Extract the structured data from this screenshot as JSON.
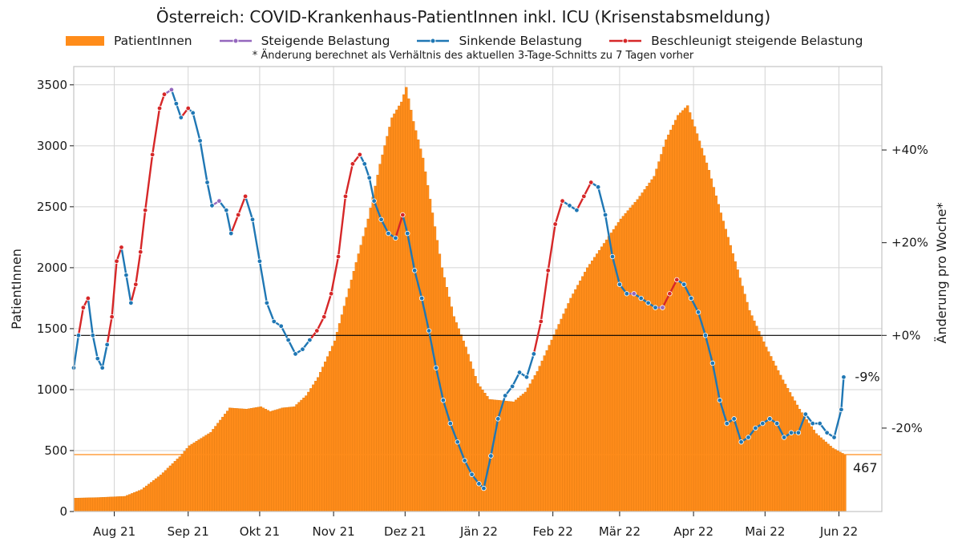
{
  "chart_data": {
    "type": "bar+line",
    "title": "Österreich: COVID-Krankenhaus-PatientInnen inkl. ICU (Krisenstabsmeldung)",
    "footnote": "* Änderung berechnet als Verhältnis des aktuellen 3-Tage-Schnitts zu 7 Tagen vorher",
    "ylabel_left": "PatientInnen",
    "ylabel_right": "Änderung pro Woche*",
    "xlim": [
      "2021-07-15",
      "2022-06-19"
    ],
    "ylim_left": [
      0,
      3650
    ],
    "ylim_right": [
      -38,
      58
    ],
    "yticks_left": [
      0,
      500,
      1000,
      1500,
      2000,
      2500,
      3000,
      3500
    ],
    "yticks_right": [
      {
        "value": -20,
        "label": "-20%"
      },
      {
        "value": 0,
        "label": "+0%"
      },
      {
        "value": 20,
        "label": "+20%"
      },
      {
        "value": 40,
        "label": "+40%"
      }
    ],
    "xticks": [
      {
        "date": "2021-08-01",
        "label": "Aug 21"
      },
      {
        "date": "2021-09-01",
        "label": "Sep 21"
      },
      {
        "date": "2021-10-01",
        "label": "Okt 21"
      },
      {
        "date": "2021-11-01",
        "label": "Nov 21"
      },
      {
        "date": "2021-12-01",
        "label": "Dez 21"
      },
      {
        "date": "2022-01-01",
        "label": "Jän 22"
      },
      {
        "date": "2022-02-01",
        "label": "Feb 22"
      },
      {
        "date": "2022-03-01",
        "label": "Mär 22"
      },
      {
        "date": "2022-04-01",
        "label": "Apr 22"
      },
      {
        "date": "2022-05-01",
        "label": "Mai 22"
      },
      {
        "date": "2022-06-01",
        "label": "Jun 22"
      }
    ],
    "grid": true,
    "legend_position": "top",
    "legend": [
      {
        "label": "PatientInnen",
        "kind": "bar",
        "color": "#ff8c1a"
      },
      {
        "label": "Steigende Belastung",
        "kind": "line",
        "color": "#9467bd"
      },
      {
        "label": "Sinkende Belastung",
        "kind": "line",
        "color": "#1f77b4"
      },
      {
        "label": "Beschleunigt steigende Belastung",
        "kind": "line",
        "color": "#d62728"
      }
    ],
    "colors": {
      "bars": "#ff8c1a",
      "bar_edge": "#e07a10",
      "rising": "#9467bd",
      "falling": "#1f77b4",
      "accelerating": "#d62728",
      "grid": "#d4d4d4",
      "zero_line": "#000000"
    },
    "patients_series": [
      {
        "date": "2021-07-15",
        "value": 110
      },
      {
        "date": "2021-07-25",
        "value": 115
      },
      {
        "date": "2021-08-05",
        "value": 125
      },
      {
        "date": "2021-08-12",
        "value": 180
      },
      {
        "date": "2021-08-20",
        "value": 300
      },
      {
        "date": "2021-08-28",
        "value": 450
      },
      {
        "date": "2021-09-01",
        "value": 540
      },
      {
        "date": "2021-09-10",
        "value": 650
      },
      {
        "date": "2021-09-18",
        "value": 850
      },
      {
        "date": "2021-09-25",
        "value": 840
      },
      {
        "date": "2021-10-01",
        "value": 860
      },
      {
        "date": "2021-10-05",
        "value": 820
      },
      {
        "date": "2021-10-10",
        "value": 850
      },
      {
        "date": "2021-10-15",
        "value": 860
      },
      {
        "date": "2021-10-20",
        "value": 950
      },
      {
        "date": "2021-10-25",
        "value": 1100
      },
      {
        "date": "2021-11-01",
        "value": 1400
      },
      {
        "date": "2021-11-08",
        "value": 1900
      },
      {
        "date": "2021-11-15",
        "value": 2400
      },
      {
        "date": "2021-11-20",
        "value": 2850
      },
      {
        "date": "2021-11-25",
        "value": 3230
      },
      {
        "date": "2021-11-29",
        "value": 3360
      },
      {
        "date": "2021-12-01",
        "value": 3480
      },
      {
        "date": "2021-12-04",
        "value": 3200
      },
      {
        "date": "2021-12-08",
        "value": 2900
      },
      {
        "date": "2021-12-12",
        "value": 2450
      },
      {
        "date": "2021-12-16",
        "value": 2000
      },
      {
        "date": "2021-12-21",
        "value": 1600
      },
      {
        "date": "2021-12-26",
        "value": 1350
      },
      {
        "date": "2021-12-31",
        "value": 1050
      },
      {
        "date": "2022-01-05",
        "value": 920
      },
      {
        "date": "2022-01-10",
        "value": 910
      },
      {
        "date": "2022-01-15",
        "value": 900
      },
      {
        "date": "2022-01-20",
        "value": 980
      },
      {
        "date": "2022-01-25",
        "value": 1150
      },
      {
        "date": "2022-02-01",
        "value": 1450
      },
      {
        "date": "2022-02-08",
        "value": 1750
      },
      {
        "date": "2022-02-15",
        "value": 2000
      },
      {
        "date": "2022-02-22",
        "value": 2200
      },
      {
        "date": "2022-03-01",
        "value": 2400
      },
      {
        "date": "2022-03-08",
        "value": 2560
      },
      {
        "date": "2022-03-15",
        "value": 2750
      },
      {
        "date": "2022-03-20",
        "value": 3050
      },
      {
        "date": "2022-03-25",
        "value": 3250
      },
      {
        "date": "2022-03-29",
        "value": 3330
      },
      {
        "date": "2022-04-02",
        "value": 3100
      },
      {
        "date": "2022-04-07",
        "value": 2800
      },
      {
        "date": "2022-04-12",
        "value": 2450
      },
      {
        "date": "2022-04-18",
        "value": 2050
      },
      {
        "date": "2022-04-24",
        "value": 1650
      },
      {
        "date": "2022-05-01",
        "value": 1350
      },
      {
        "date": "2022-05-08",
        "value": 1080
      },
      {
        "date": "2022-05-15",
        "value": 840
      },
      {
        "date": "2022-05-22",
        "value": 640
      },
      {
        "date": "2022-05-29",
        "value": 520
      },
      {
        "date": "2022-06-03",
        "value": 467
      }
    ],
    "change_series": [
      {
        "date": "2021-07-15",
        "value": -7
      },
      {
        "date": "2021-07-17",
        "value": 0
      },
      {
        "date": "2021-07-19",
        "value": 6
      },
      {
        "date": "2021-07-21",
        "value": 8
      },
      {
        "date": "2021-07-23",
        "value": 0
      },
      {
        "date": "2021-07-25",
        "value": -5
      },
      {
        "date": "2021-07-27",
        "value": -7
      },
      {
        "date": "2021-07-29",
        "value": -2
      },
      {
        "date": "2021-07-31",
        "value": 4
      },
      {
        "date": "2021-08-02",
        "value": 16
      },
      {
        "date": "2021-08-04",
        "value": 19
      },
      {
        "date": "2021-08-06",
        "value": 13
      },
      {
        "date": "2021-08-08",
        "value": 7
      },
      {
        "date": "2021-08-10",
        "value": 11
      },
      {
        "date": "2021-08-12",
        "value": 18
      },
      {
        "date": "2021-08-14",
        "value": 27
      },
      {
        "date": "2021-08-17",
        "value": 39
      },
      {
        "date": "2021-08-20",
        "value": 49
      },
      {
        "date": "2021-08-22",
        "value": 52
      },
      {
        "date": "2021-08-25",
        "value": 53
      },
      {
        "date": "2021-08-27",
        "value": 50
      },
      {
        "date": "2021-08-29",
        "value": 47
      },
      {
        "date": "2021-09-01",
        "value": 49
      },
      {
        "date": "2021-09-03",
        "value": 48
      },
      {
        "date": "2021-09-06",
        "value": 42
      },
      {
        "date": "2021-09-09",
        "value": 33
      },
      {
        "date": "2021-09-11",
        "value": 28
      },
      {
        "date": "2021-09-14",
        "value": 29
      },
      {
        "date": "2021-09-17",
        "value": 27
      },
      {
        "date": "2021-09-19",
        "value": 22
      },
      {
        "date": "2021-09-22",
        "value": 26
      },
      {
        "date": "2021-09-25",
        "value": 30
      },
      {
        "date": "2021-09-28",
        "value": 25
      },
      {
        "date": "2021-10-01",
        "value": 16
      },
      {
        "date": "2021-10-04",
        "value": 7
      },
      {
        "date": "2021-10-07",
        "value": 3
      },
      {
        "date": "2021-10-10",
        "value": 2
      },
      {
        "date": "2021-10-13",
        "value": -1
      },
      {
        "date": "2021-10-16",
        "value": -4
      },
      {
        "date": "2021-10-19",
        "value": -3
      },
      {
        "date": "2021-10-22",
        "value": -1
      },
      {
        "date": "2021-10-25",
        "value": 1
      },
      {
        "date": "2021-10-28",
        "value": 4
      },
      {
        "date": "2021-10-31",
        "value": 9
      },
      {
        "date": "2021-11-03",
        "value": 17
      },
      {
        "date": "2021-11-06",
        "value": 30
      },
      {
        "date": "2021-11-09",
        "value": 37
      },
      {
        "date": "2021-11-12",
        "value": 39
      },
      {
        "date": "2021-11-14",
        "value": 37
      },
      {
        "date": "2021-11-16",
        "value": 34
      },
      {
        "date": "2021-11-18",
        "value": 29
      },
      {
        "date": "2021-11-21",
        "value": 25
      },
      {
        "date": "2021-11-24",
        "value": 22
      },
      {
        "date": "2021-11-27",
        "value": 21
      },
      {
        "date": "2021-11-30",
        "value": 26
      },
      {
        "date": "2021-12-02",
        "value": 22
      },
      {
        "date": "2021-12-05",
        "value": 14
      },
      {
        "date": "2021-12-08",
        "value": 8
      },
      {
        "date": "2021-12-11",
        "value": 1
      },
      {
        "date": "2021-12-14",
        "value": -7
      },
      {
        "date": "2021-12-17",
        "value": -14
      },
      {
        "date": "2021-12-20",
        "value": -19
      },
      {
        "date": "2021-12-23",
        "value": -23
      },
      {
        "date": "2021-12-26",
        "value": -27
      },
      {
        "date": "2021-12-29",
        "value": -30
      },
      {
        "date": "2022-01-01",
        "value": -32
      },
      {
        "date": "2022-01-03",
        "value": -33
      },
      {
        "date": "2022-01-06",
        "value": -26
      },
      {
        "date": "2022-01-09",
        "value": -18
      },
      {
        "date": "2022-01-12",
        "value": -13
      },
      {
        "date": "2022-01-15",
        "value": -11
      },
      {
        "date": "2022-01-18",
        "value": -8
      },
      {
        "date": "2022-01-21",
        "value": -9
      },
      {
        "date": "2022-01-24",
        "value": -4
      },
      {
        "date": "2022-01-27",
        "value": 3
      },
      {
        "date": "2022-01-30",
        "value": 14
      },
      {
        "date": "2022-02-02",
        "value": 24
      },
      {
        "date": "2022-02-05",
        "value": 29
      },
      {
        "date": "2022-02-08",
        "value": 28
      },
      {
        "date": "2022-02-11",
        "value": 27
      },
      {
        "date": "2022-02-14",
        "value": 30
      },
      {
        "date": "2022-02-17",
        "value": 33
      },
      {
        "date": "2022-02-20",
        "value": 32
      },
      {
        "date": "2022-02-23",
        "value": 26
      },
      {
        "date": "2022-02-26",
        "value": 17
      },
      {
        "date": "2022-03-01",
        "value": 11
      },
      {
        "date": "2022-03-04",
        "value": 9
      },
      {
        "date": "2022-03-07",
        "value": 9
      },
      {
        "date": "2022-03-10",
        "value": 8
      },
      {
        "date": "2022-03-13",
        "value": 7
      },
      {
        "date": "2022-03-16",
        "value": 6
      },
      {
        "date": "2022-03-19",
        "value": 6
      },
      {
        "date": "2022-03-22",
        "value": 9
      },
      {
        "date": "2022-03-25",
        "value": 12
      },
      {
        "date": "2022-03-28",
        "value": 11
      },
      {
        "date": "2022-03-31",
        "value": 8
      },
      {
        "date": "2022-04-03",
        "value": 5
      },
      {
        "date": "2022-04-06",
        "value": 0
      },
      {
        "date": "2022-04-09",
        "value": -6
      },
      {
        "date": "2022-04-12",
        "value": -14
      },
      {
        "date": "2022-04-15",
        "value": -19
      },
      {
        "date": "2022-04-18",
        "value": -18
      },
      {
        "date": "2022-04-21",
        "value": -23
      },
      {
        "date": "2022-04-24",
        "value": -22
      },
      {
        "date": "2022-04-27",
        "value": -20
      },
      {
        "date": "2022-04-30",
        "value": -19
      },
      {
        "date": "2022-05-03",
        "value": -18
      },
      {
        "date": "2022-05-06",
        "value": -19
      },
      {
        "date": "2022-05-09",
        "value": -22
      },
      {
        "date": "2022-05-12",
        "value": -21
      },
      {
        "date": "2022-05-15",
        "value": -21
      },
      {
        "date": "2022-05-18",
        "value": -17
      },
      {
        "date": "2022-05-21",
        "value": -19
      },
      {
        "date": "2022-05-24",
        "value": -19
      },
      {
        "date": "2022-05-27",
        "value": -21
      },
      {
        "date": "2022-05-30",
        "value": -22
      },
      {
        "date": "2022-06-02",
        "value": -16
      },
      {
        "date": "2022-06-03",
        "value": -9
      }
    ],
    "annotations": {
      "last_change": "-9%",
      "last_patients": "467"
    }
  }
}
